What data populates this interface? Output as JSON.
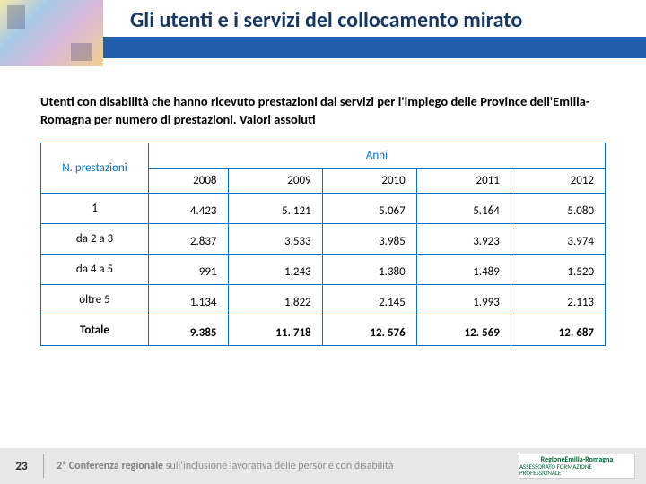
{
  "header": {
    "title": "Gli utenti e i servizi del collocamento mirato"
  },
  "subtitle": "Utenti con disabilità che hanno ricevuto prestazioni dai servizi per l'impiego delle Province dell'Emilia-Romagna per numero di prestazioni. Valori assoluti",
  "table": {
    "leftHeader": "N. prestazioni",
    "spanHeader": "Anni",
    "years": [
      "2008",
      "2009",
      "2010",
      "2011",
      "2012"
    ],
    "rows": [
      {
        "label": "1",
        "vals": [
          "4.423",
          "5. 121",
          "5.067",
          "5.164",
          "5.080"
        ]
      },
      {
        "label": "da 2 a 3",
        "vals": [
          "2.837",
          "3.533",
          "3.985",
          "3.923",
          "3.974"
        ]
      },
      {
        "label": "da 4 a 5",
        "vals": [
          "991",
          "1.243",
          "1.380",
          "1.489",
          "1.520"
        ]
      },
      {
        "label": "oltre 5",
        "vals": [
          "1.134",
          "1.822",
          "2.145",
          "1.993",
          "2.113"
        ]
      }
    ],
    "total": {
      "label": "Totale",
      "vals": [
        "9.385",
        "11. 718",
        "12. 576",
        "12. 569",
        "12. 687"
      ]
    }
  },
  "footer": {
    "page": "23",
    "conf_bold": "2ª Conferenza regionale",
    "conf_light1": " sull'inclusione lavorativa ",
    "conf_light2": "delle persone con disabilità",
    "logo_top": "RegioneEmilia-Romagna",
    "logo_bot": "ASSESSORATO FORMAZIONE PROFESSIONALE"
  },
  "style": {
    "title_color": "#17375e",
    "stripe_color": "#1f5ea8",
    "border_color": "#0070c0",
    "footer_bg": "#e7e7e7"
  }
}
